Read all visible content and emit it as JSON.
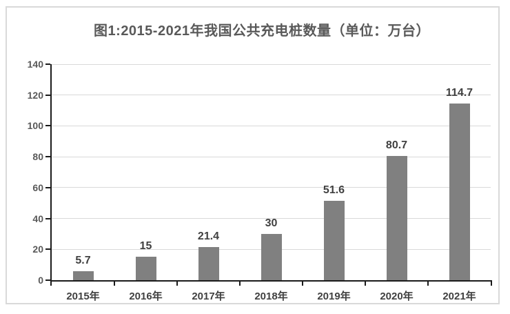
{
  "chart_data": {
    "type": "bar",
    "title": "图1:2015-2021年我国公共充电桩数量（单位：万台）",
    "categories": [
      "2015年",
      "2016年",
      "2017年",
      "2018年",
      "2019年",
      "2020年",
      "2021年"
    ],
    "values": [
      5.7,
      15,
      21.4,
      30,
      51.6,
      80.7,
      114.7
    ],
    "data_labels": [
      "5.7",
      "15",
      "21.4",
      "30",
      "51.6",
      "80.7",
      "114.7"
    ],
    "xlabel": "",
    "ylabel": "",
    "ylim": [
      0,
      140
    ],
    "yticks": [
      0,
      20,
      40,
      60,
      80,
      100,
      120,
      140
    ],
    "grid": true,
    "legend": "none",
    "colors": {
      "bar": "#808080",
      "gridline": "#d9d9d9",
      "axis": "#1a1a1a",
      "title_text": "#595959",
      "tick_text": "#595959",
      "label_text": "#404040",
      "frame_border": "#d9d9d9",
      "background": "#ffffff"
    }
  }
}
